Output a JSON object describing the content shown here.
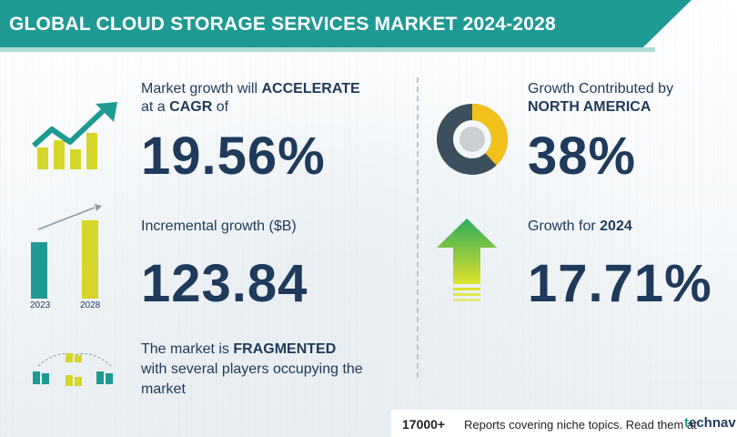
{
  "header": {
    "title": "GLOBAL CLOUD STORAGE SERVICES MARKET 2024-2028"
  },
  "cagr": {
    "line1_prefix": "Market growth will ",
    "line1_bold": "ACCELERATE",
    "line2_prefix": "at a ",
    "line2_bold": "CAGR",
    "line2_suffix": "  of",
    "value": "19.56%"
  },
  "incremental": {
    "label": "Incremental growth ($B)",
    "value": "123.84",
    "bar_years": [
      "2023",
      "2028"
    ]
  },
  "fragmented": {
    "line1_prefix": "The market is ",
    "line1_bold": "FRAGMENTED",
    "line2": "with several players occupying the",
    "line3": "market"
  },
  "region": {
    "line1": "Growth Contributed by",
    "line2_bold": "NORTH AMERICA",
    "value": "38%",
    "share_fraction": 0.38
  },
  "yearly": {
    "label_prefix": "Growth for  ",
    "label_bold": "2024",
    "value": "17.71%"
  },
  "footer": {
    "count": "17000+",
    "text": "Reports covering niche topics. Read them at",
    "logo_mark": "t",
    "logo_text": "echnav"
  },
  "colors": {
    "teal": "#1e9a93",
    "navy": "#1f3a5a",
    "yellow": "#d6d62a",
    "donut_dark": "#3b4f5c",
    "donut_yellow": "#f2c21b",
    "arrow_green": "#2eab5c",
    "arrow_yellow": "#dfe12b"
  }
}
